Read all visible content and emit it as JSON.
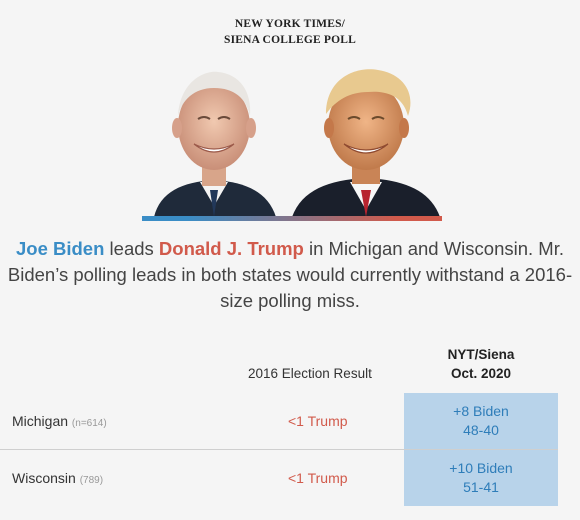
{
  "kicker": {
    "line1": "NEW YORK TIMES/",
    "line2": "SIENA COLLEGE POLL"
  },
  "headline": {
    "biden": "Joe Biden",
    "leads": " leads ",
    "trump": "Donald J. Trump",
    "rest": " in Michigan and Wisconsin. Mr. Biden’s polling leads in both states would currently withstand a 2016-size polling miss."
  },
  "colors": {
    "biden_blue": "#3a8dc6",
    "trump_red": "#d15a4b",
    "cell_fill": "#b8d3ea"
  },
  "chart_data": {
    "type": "table",
    "columns": [
      "",
      "2016 Election Result",
      "NYT/Siena Oct. 2020"
    ],
    "header": {
      "result_2016": "2016 Election Result",
      "nyt_line1": "NYT/Siena",
      "nyt_line2": "Oct. 2020"
    },
    "rows": [
      {
        "state": "Michigan",
        "n": "(n=614)",
        "result_2016": "<1 Trump",
        "poll_margin": "+8 Biden",
        "poll_score": "48-40",
        "biden": 48,
        "trump": 40
      },
      {
        "state": "Wisconsin",
        "n": "(789)",
        "result_2016": "<1 Trump",
        "poll_margin": "+10 Biden",
        "poll_score": "51-41",
        "biden": 51,
        "trump": 41
      }
    ]
  }
}
